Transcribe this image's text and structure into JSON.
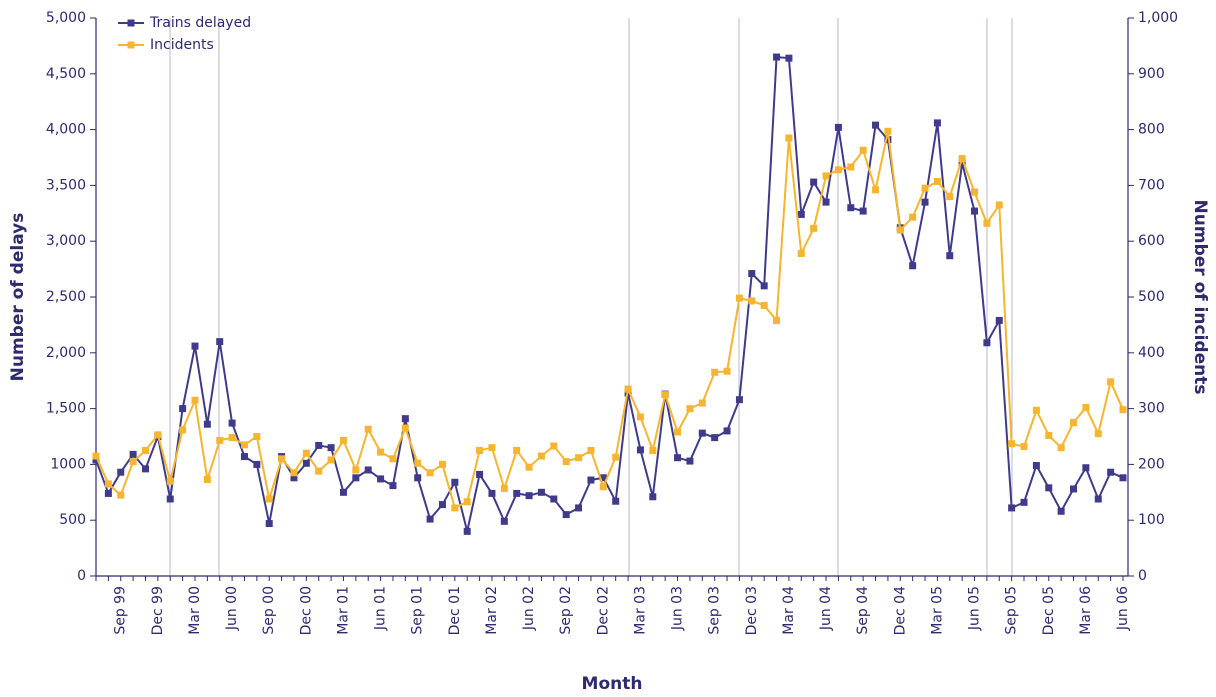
{
  "chart_data": {
    "type": "line",
    "x_label": "Month",
    "y_label": "Number of delays",
    "y2_label": "Number of incidents",
    "categories": [
      null,
      null,
      "Sep 99",
      null,
      null,
      "Dec 99",
      null,
      null,
      "Mar 00",
      null,
      null,
      "Jun 00",
      null,
      null,
      "Sep 00",
      null,
      null,
      "Dec 00",
      null,
      null,
      "Mar 01",
      null,
      null,
      "Jun 01",
      null,
      null,
      "Sep 01",
      null,
      null,
      "Dec 01",
      null,
      null,
      "Mar 02",
      null,
      null,
      "Jun 02",
      null,
      null,
      "Sep 02",
      null,
      null,
      "Dec 02",
      null,
      null,
      "Mar 03",
      null,
      null,
      "Jun 03",
      null,
      null,
      "Sep 03",
      null,
      null,
      "Dec 03",
      null,
      null,
      "Mar 04",
      null,
      null,
      "Jun 04",
      null,
      null,
      "Sep 04",
      null,
      null,
      "Dec 04",
      null,
      null,
      "Mar 05",
      null,
      null,
      "Jun 05",
      null,
      null,
      "Sep 05",
      null,
      null,
      "Dec 05",
      null,
      null,
      "Mar 06",
      null,
      null,
      "Jun 06"
    ],
    "series": [
      {
        "name": "Trains delayed",
        "color": "#3f3b8a",
        "axis": "y",
        "values": [
          1040,
          740,
          930,
          1090,
          960,
          1250,
          690,
          1500,
          2060,
          1360,
          2100,
          1370,
          1070,
          1000,
          470,
          1070,
          880,
          1010,
          1170,
          1150,
          750,
          880,
          950,
          870,
          810,
          1410,
          880,
          510,
          640,
          840,
          400,
          910,
          740,
          490,
          740,
          720,
          750,
          690,
          550,
          610,
          860,
          880,
          670,
          1640,
          1130,
          710,
          1630,
          1060,
          1030,
          1280,
          1240,
          1300,
          1580,
          2710,
          2600,
          4650,
          4640,
          3240,
          3530,
          3350,
          4020,
          3300,
          3270,
          4040,
          3910,
          3120,
          2780,
          3350,
          4060,
          2870,
          3700,
          3270,
          2090,
          2290,
          610,
          660,
          990,
          790,
          580,
          780,
          970,
          690,
          930,
          880
        ]
      },
      {
        "name": "Incidents",
        "color": "#f5b52e",
        "axis": "y2",
        "values": [
          215,
          165,
          145,
          205,
          225,
          253,
          170,
          262,
          315,
          173,
          243,
          248,
          235,
          250,
          138,
          210,
          185,
          220,
          188,
          208,
          243,
          190,
          263,
          222,
          210,
          265,
          202,
          185,
          200,
          122,
          133,
          225,
          230,
          157,
          225,
          195,
          215,
          233,
          205,
          212,
          225,
          160,
          213,
          335,
          285,
          225,
          325,
          258,
          300,
          310,
          365,
          367,
          498,
          493,
          485,
          458,
          785,
          578,
          623,
          717,
          728,
          733,
          763,
          692,
          797,
          620,
          643,
          695,
          707,
          680,
          748,
          688,
          632,
          665,
          237,
          232,
          297,
          252,
          230,
          275,
          302,
          255,
          348,
          298
        ]
      }
    ],
    "ylim": [
      0,
      5000
    ],
    "yticks": [
      0,
      500,
      1000,
      {
        "value": 1500,
        "label": "1,500"
      },
      {
        "value": 2000,
        "label": "2,000"
      },
      {
        "value": 2500,
        "label": "2,500"
      },
      {
        "value": 3000,
        "label": "3,000"
      },
      {
        "value": 3500,
        "label": "3,500"
      },
      {
        "value": 4000,
        "label": "4,000"
      },
      {
        "value": 4500,
        "label": "4,500"
      },
      {
        "value": 5000,
        "label": "5,000"
      }
    ],
    "y2lim": [
      0,
      1000
    ],
    "y2ticks": [
      0,
      100,
      200,
      300,
      400,
      500,
      600,
      700,
      800,
      900,
      {
        "value": 1000,
        "label": "1,000"
      }
    ],
    "legend": "top-left"
  }
}
